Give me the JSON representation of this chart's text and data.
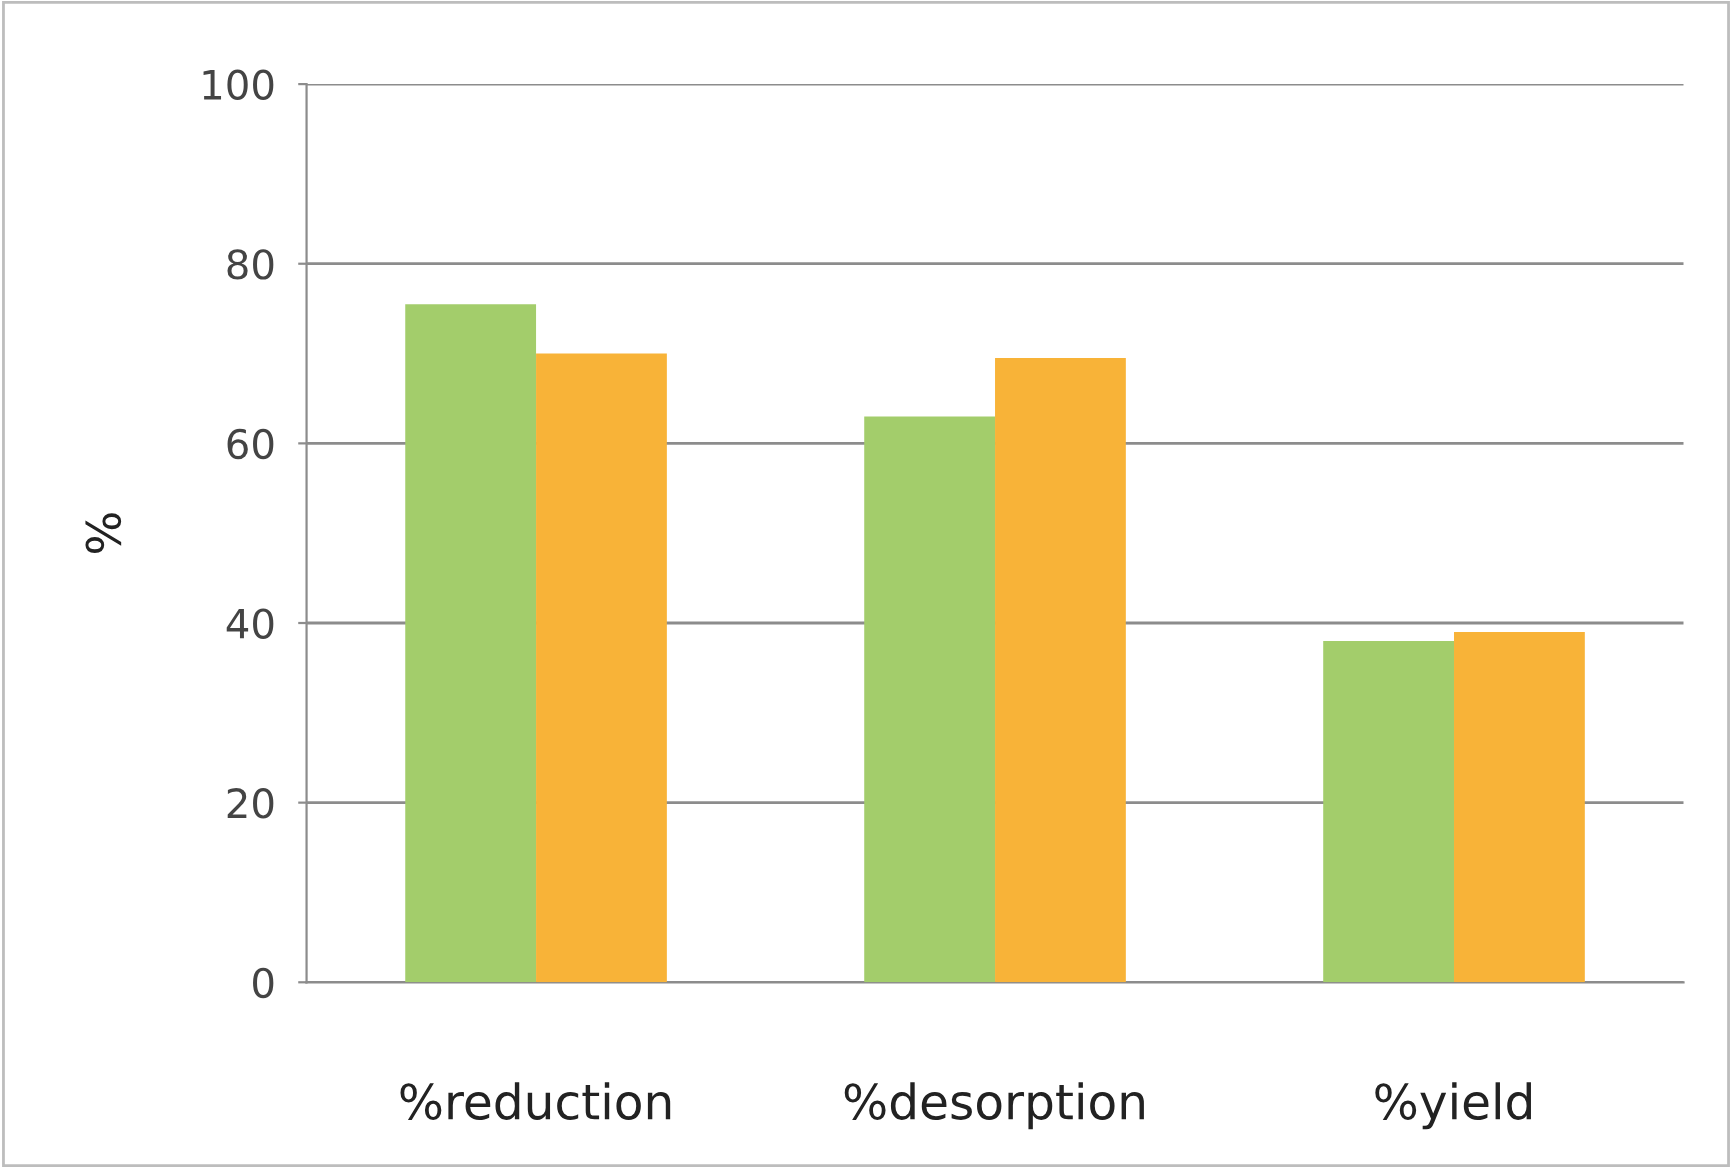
{
  "chart_data": {
    "type": "bar",
    "ylabel": "%",
    "categories": [
      "%reduction",
      "%desorption",
      "%yield"
    ],
    "series": [
      {
        "color": "#a3cd6b",
        "values": [
          75.5,
          63,
          38
        ]
      },
      {
        "color": "#f8b338",
        "values": [
          70,
          69.5,
          39
        ]
      }
    ],
    "ylim": [
      0,
      100
    ],
    "yticks": [
      0,
      20,
      40,
      60,
      80,
      100
    ],
    "grid": "y"
  }
}
